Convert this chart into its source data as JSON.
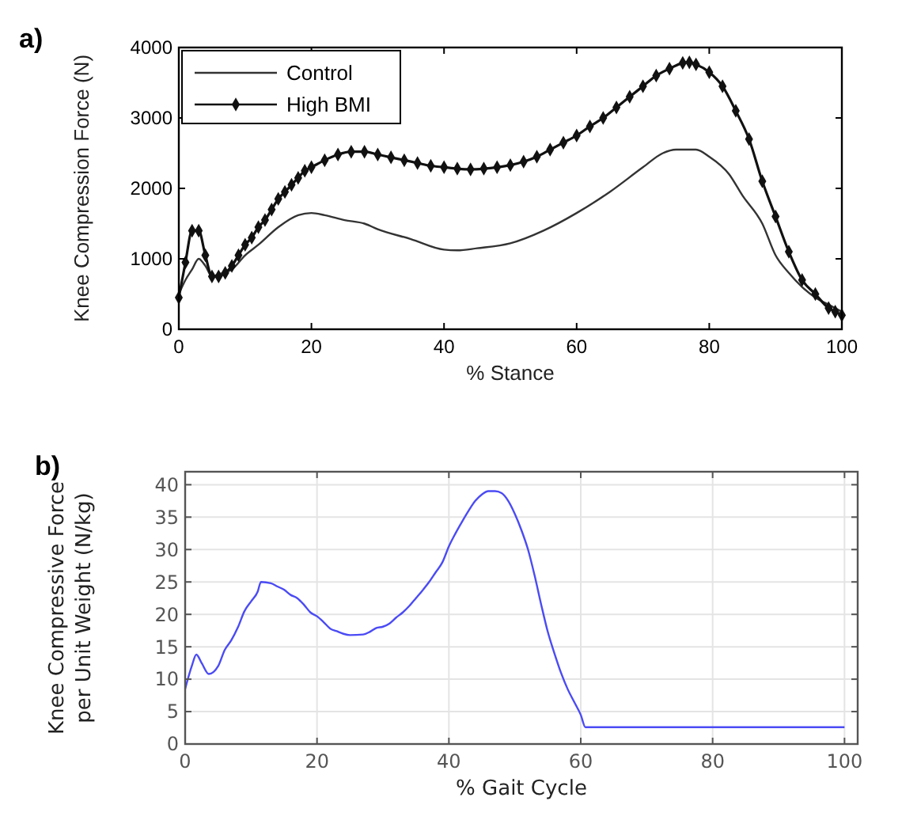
{
  "chart_data": [
    {
      "type": "line",
      "title": "a)",
      "xlabel": "% Stance",
      "ylabel": "Knee Compression Force (N)",
      "xlim": [
        0,
        100
      ],
      "xticks": [
        0,
        20,
        40,
        60,
        80,
        100
      ],
      "ylim": [
        0,
        4000
      ],
      "yticks": [
        0,
        1000,
        2000,
        3000,
        4000
      ],
      "grid": false,
      "legend": "top left",
      "series": [
        {
          "name": "Control",
          "color": "#333333",
          "marker": "none",
          "x": [
            0,
            1,
            2,
            3,
            4,
            5,
            6,
            8,
            10,
            12,
            15,
            18,
            20,
            22,
            25,
            28,
            30,
            35,
            40,
            42,
            45,
            50,
            55,
            60,
            65,
            70,
            73,
            75,
            78,
            80,
            83,
            85,
            88,
            90,
            92,
            94,
            96,
            98,
            100
          ],
          "values": [
            500,
            700,
            850,
            1000,
            900,
            750,
            780,
            850,
            1050,
            1200,
            1450,
            1620,
            1650,
            1620,
            1550,
            1500,
            1420,
            1280,
            1130,
            1120,
            1150,
            1220,
            1400,
            1650,
            1950,
            2300,
            2500,
            2550,
            2550,
            2450,
            2200,
            1900,
            1500,
            1050,
            800,
            600,
            450,
            350,
            250
          ]
        },
        {
          "name": "High BMI",
          "color": "#111111",
          "marker": "diamond",
          "x": [
            0,
            1,
            2,
            3,
            4,
            5,
            6,
            7,
            8,
            9,
            10,
            11,
            12,
            13,
            14,
            15,
            16,
            17,
            18,
            19,
            20,
            22,
            24,
            26,
            28,
            30,
            32,
            34,
            36,
            38,
            40,
            42,
            44,
            46,
            48,
            50,
            52,
            54,
            56,
            58,
            60,
            62,
            64,
            66,
            68,
            70,
            72,
            74,
            76,
            77,
            78,
            80,
            82,
            84,
            86,
            88,
            90,
            92,
            94,
            96,
            98,
            99,
            100
          ],
          "values": [
            450,
            950,
            1400,
            1400,
            1050,
            750,
            750,
            800,
            900,
            1050,
            1200,
            1300,
            1450,
            1550,
            1700,
            1850,
            1950,
            2050,
            2150,
            2250,
            2300,
            2400,
            2480,
            2520,
            2520,
            2480,
            2440,
            2400,
            2360,
            2320,
            2300,
            2280,
            2270,
            2280,
            2300,
            2330,
            2380,
            2450,
            2550,
            2650,
            2750,
            2880,
            3000,
            3150,
            3300,
            3450,
            3600,
            3700,
            3780,
            3790,
            3760,
            3650,
            3450,
            3100,
            2700,
            2100,
            1600,
            1100,
            700,
            500,
            300,
            250,
            200
          ]
        }
      ]
    },
    {
      "type": "line",
      "title": "b)",
      "xlabel": "% Gait Cycle",
      "ylabel": "Knee Compressive Force per Unit Weight (N/kg)",
      "xlim": [
        0,
        102
      ],
      "xticks": [
        0,
        20,
        40,
        60,
        80,
        100
      ],
      "ylim": [
        0,
        42
      ],
      "yticks": [
        0,
        5,
        10,
        15,
        20,
        25,
        30,
        35,
        40
      ],
      "grid": true,
      "legend": false,
      "series": [
        {
          "color": "#4b4bf5",
          "marker": "none",
          "x": [
            0,
            1,
            1.7,
            2.5,
            3.6,
            5,
            6,
            7,
            8,
            9,
            10,
            11,
            11.5,
            13,
            14,
            15,
            16,
            17,
            18,
            19,
            20,
            21,
            22,
            23,
            24,
            25,
            27,
            28,
            29,
            30,
            31,
            32,
            33,
            34,
            35,
            36,
            37,
            38,
            39,
            40,
            41,
            42,
            43,
            44,
            45,
            46,
            47,
            48,
            49,
            50,
            51,
            52,
            53,
            54,
            55,
            56,
            57,
            58,
            59,
            60,
            60.7,
            100
          ],
          "values": [
            8.5,
            12,
            13.8,
            12.5,
            10.8,
            12,
            14.5,
            16,
            18,
            20.5,
            22,
            23.5,
            25,
            24.8,
            24.3,
            23.8,
            23,
            22.5,
            21.5,
            20.3,
            19.7,
            18.8,
            17.8,
            17.4,
            17,
            16.8,
            16.9,
            17.3,
            17.9,
            18.1,
            18.6,
            19.5,
            20.3,
            21.3,
            22.5,
            23.7,
            25,
            26.5,
            28,
            30.5,
            32.5,
            34.3,
            36,
            37.5,
            38.5,
            39,
            39,
            38.7,
            37.5,
            35.5,
            33,
            30,
            26,
            21.5,
            17.3,
            14,
            11,
            8.5,
            6.5,
            4.5,
            2.6,
            2.6
          ]
        }
      ]
    }
  ]
}
